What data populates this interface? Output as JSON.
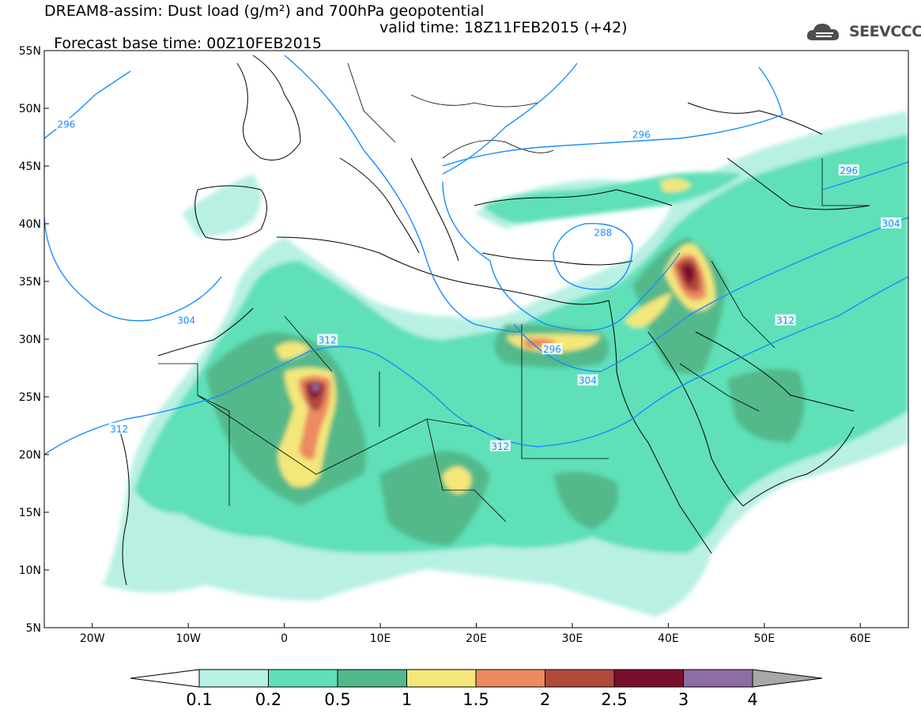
{
  "header": {
    "title_line1": "DREAM8-assim: Dust load (g/m²) and 700hPa geopotential",
    "base_time": "Forecast base time: 00Z10FEB2015",
    "valid_time": "valid time: 18Z11FEB2015 (+42)",
    "logo_text": "SEEVCCC"
  },
  "map": {
    "lon_range": [
      -25,
      65
    ],
    "lat_range": [
      5,
      55
    ],
    "lat_ticks": [
      {
        "value": 55,
        "label": "55N"
      },
      {
        "value": 50,
        "label": "50N"
      },
      {
        "value": 45,
        "label": "45N"
      },
      {
        "value": 40,
        "label": "40N"
      },
      {
        "value": 35,
        "label": "35N"
      },
      {
        "value": 30,
        "label": "30N"
      },
      {
        "value": 25,
        "label": "25N"
      },
      {
        "value": 20,
        "label": "20N"
      },
      {
        "value": 15,
        "label": "15N"
      },
      {
        "value": 10,
        "label": "10N"
      },
      {
        "value": 5,
        "label": "5N"
      }
    ],
    "lon_ticks": [
      {
        "value": -20,
        "label": "20W"
      },
      {
        "value": -10,
        "label": "10W"
      },
      {
        "value": 0,
        "label": "0"
      },
      {
        "value": 10,
        "label": "10E"
      },
      {
        "value": 20,
        "label": "20E"
      },
      {
        "value": 30,
        "label": "30E"
      },
      {
        "value": 40,
        "label": "40E"
      },
      {
        "value": 50,
        "label": "50E"
      },
      {
        "value": 60,
        "label": "60E"
      }
    ],
    "contour_labels": [
      {
        "text": "296",
        "lon": -22.7,
        "lat": 48.6
      },
      {
        "text": "296",
        "lon": 37.2,
        "lat": 47.7
      },
      {
        "text": "296",
        "lon": 58.8,
        "lat": 44.6
      },
      {
        "text": "288",
        "lon": 33.2,
        "lat": 39.2
      },
      {
        "text": "304",
        "lon": 63.2,
        "lat": 40.0
      },
      {
        "text": "304",
        "lon": -10.2,
        "lat": 31.6
      },
      {
        "text": "312",
        "lon": -17.2,
        "lat": 22.2
      },
      {
        "text": "312",
        "lon": 4.5,
        "lat": 29.9
      },
      {
        "text": "296",
        "lon": 27.9,
        "lat": 29.1
      },
      {
        "text": "304",
        "lon": 31.6,
        "lat": 26.4
      },
      {
        "text": "312",
        "lon": 52.2,
        "lat": 31.6
      },
      {
        "text": "312",
        "lon": 22.5,
        "lat": 20.7
      }
    ]
  },
  "colorbar": {
    "labels": [
      "0.1",
      "0.2",
      "0.5",
      "1",
      "1.5",
      "2",
      "2.5",
      "3",
      "4"
    ],
    "colors": [
      "#b9f0e4",
      "#5fe0b8",
      "#52b98a",
      "#f3e77a",
      "#ec8a60",
      "#b14a3c",
      "#7a0f2c",
      "#8e6ca6"
    ],
    "under_color": "#ffffff",
    "over_color": "#a8a8a8"
  },
  "colors": {
    "contour": "#1a8cff",
    "border": "#000000"
  }
}
